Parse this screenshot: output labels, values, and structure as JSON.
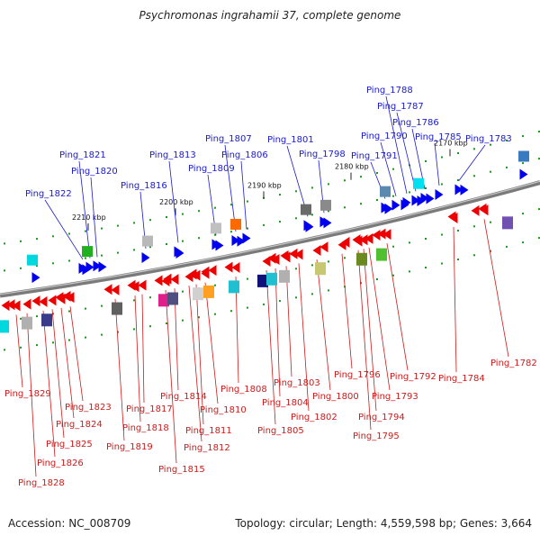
{
  "title": "Psychromonas ingrahamii 37, complete genome",
  "accession": "Accession: NC_008709",
  "summary": "Topology: circular; Length: 4,559,598 bp; Genes: 3,664",
  "ruler_ticks": [
    {
      "label": "2210 kbp"
    },
    {
      "label": "2200 kbp"
    },
    {
      "label": "2190 kbp"
    },
    {
      "label": "2180 kbp"
    },
    {
      "label": "2170 kbp"
    }
  ],
  "plus_genes": [
    "Ping_1822",
    "Ping_1821",
    "Ping_1820",
    "Ping_1816",
    "Ping_1813",
    "Ping_1809",
    "Ping_1807",
    "Ping_1806",
    "Ping_1801",
    "Ping_1798",
    "Ping_1791",
    "Ping_1790",
    "Ping_1788",
    "Ping_1787",
    "Ping_1786",
    "Ping_1785",
    "Ping_1783"
  ],
  "minus_genes": [
    "Ping_1829",
    "Ping_1828",
    "Ping_1826",
    "Ping_1825",
    "Ping_1824",
    "Ping_1823",
    "Ping_1819",
    "Ping_1818",
    "Ping_1817",
    "Ping_1815",
    "Ping_1814",
    "Ping_1812",
    "Ping_1811",
    "Ping_1810",
    "Ping_1808",
    "Ping_1805",
    "Ping_1804",
    "Ping_1803",
    "Ping_1802",
    "Ping_1800",
    "Ping_1796",
    "Ping_1795",
    "Ping_1794",
    "Ping_1793",
    "Ping_1792",
    "Ping_1784",
    "Ping_1782"
  ],
  "colors": {
    "plus_strand": "#0000ee",
    "minus_strand": "#ee0000",
    "plus_label": "#1a1acc",
    "minus_label": "#cc1a1a",
    "backbone": "#7a7a7a",
    "tick": "#1a9a1a"
  }
}
